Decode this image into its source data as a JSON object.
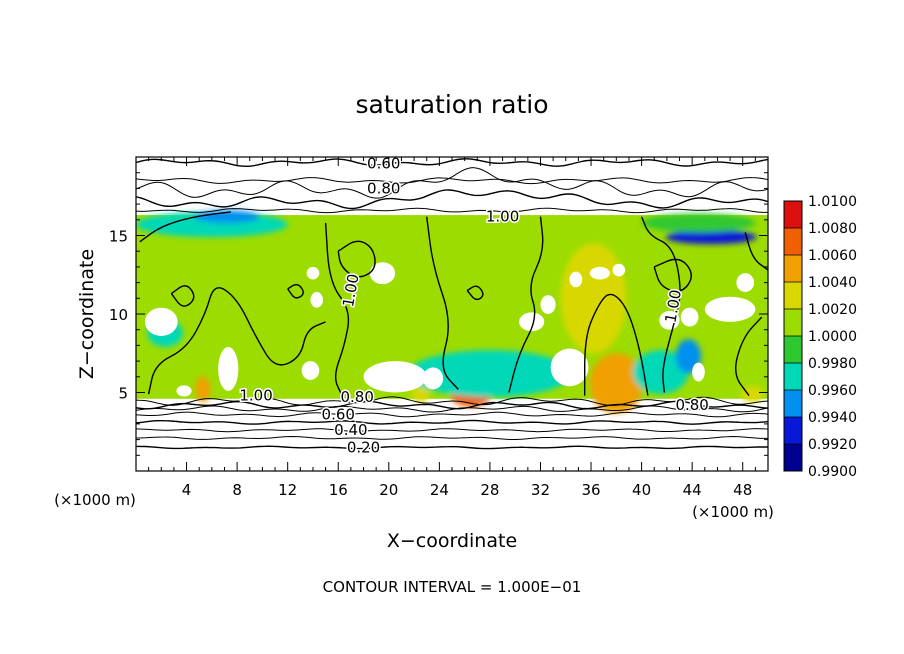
{
  "chart_data": {
    "type": "heatmap",
    "title": "saturation ratio",
    "xlabel": "X−coordinate",
    "ylabel": "Z−coordinate",
    "x_unit": "(×1000 m)",
    "xlim": [
      0,
      50
    ],
    "ylim": [
      0,
      20
    ],
    "x_ticks": [
      4,
      8,
      12,
      16,
      20,
      24,
      28,
      32,
      36,
      40,
      44,
      48
    ],
    "x_tick_labels": [
      "4",
      "8",
      "12",
      "16",
      "20",
      "24",
      "28",
      "32",
      "36",
      "40",
      "44",
      "48"
    ],
    "y_ticks": [
      5,
      10,
      15
    ],
    "y_tick_labels": [
      "5",
      "10",
      "15"
    ],
    "footer": "CONTOUR INTERVAL = 1.000E−01",
    "colorbar": {
      "levels": [
        "1.0100",
        "1.0080",
        "1.0060",
        "1.0040",
        "1.0020",
        "1.0000",
        "0.9980",
        "0.9960",
        "0.9940",
        "0.9920",
        "0.9900"
      ],
      "colors": [
        "#f08080",
        "#dd1010",
        "#f06000",
        "#f0a000",
        "#d8d800",
        "#9cdc00",
        "#30c830",
        "#00d8b8",
        "#0090f0",
        "#0818d8",
        "#000090",
        "#6a1fa8"
      ]
    },
    "contour_labels": [
      {
        "text": "0.60",
        "x": 19.6,
        "z": 19.6
      },
      {
        "text": "0.80",
        "x": 19.6,
        "z": 18.0
      },
      {
        "text": "1.00",
        "x": 29.0,
        "z": 16.2
      },
      {
        "text": "1.00",
        "x": 17.0,
        "z": 11.5
      },
      {
        "text": "1.00",
        "x": 42.5,
        "z": 10.5
      },
      {
        "text": "1.00",
        "x": 9.5,
        "z": 4.8
      },
      {
        "text": "0.80",
        "x": 17.5,
        "z": 4.7
      },
      {
        "text": "0.80",
        "x": 44.0,
        "z": 4.2
      },
      {
        "text": "0.60",
        "x": 16.0,
        "z": 3.6
      },
      {
        "text": "0.40",
        "x": 17.0,
        "z": 2.6
      },
      {
        "text": "0.20",
        "x": 18.0,
        "z": 1.5
      }
    ],
    "field_bounds": {
      "z_bottom": 4.6,
      "z_top": 16.3
    },
    "field_regions": [
      {
        "level": 1.0019,
        "x": 25,
        "z": 10.5,
        "rx": 25,
        "rz": 5.8
      },
      {
        "level": 1.0062,
        "x": 26.5,
        "z": 4.8,
        "rx": 1.6,
        "rz": 0.7
      },
      {
        "level": 1.008,
        "x": 38.0,
        "z": 5.0,
        "rx": 1.9,
        "rz": 1.3
      },
      {
        "level": 1.005,
        "x": 38.0,
        "z": 5.6,
        "rx": 2.1,
        "rz": 1.9
      },
      {
        "level": 1.0042,
        "x": 5.3,
        "z": 5.2,
        "rx": 0.6,
        "rz": 0.8
      },
      {
        "level": 1.0038,
        "x": 22.5,
        "z": 4.9,
        "rx": 0.7,
        "rz": 0.5
      },
      {
        "level": 1.0038,
        "x": 48.8,
        "z": 4.9,
        "rx": 0.9,
        "rz": 0.5
      },
      {
        "level": 1.0032,
        "x": 36.2,
        "z": 11.0,
        "rx": 2.6,
        "rz": 3.5
      },
      {
        "level": 0.9974,
        "x": 28.0,
        "z": 6.2,
        "rx": 6.5,
        "rz": 1.5
      },
      {
        "level": 0.9966,
        "x": 41.5,
        "z": 6.3,
        "rx": 2.2,
        "rz": 1.4
      },
      {
        "level": 0.9962,
        "x": 6.0,
        "z": 15.7,
        "rx": 6.0,
        "rz": 0.8
      },
      {
        "level": 0.9945,
        "x": 7.2,
        "z": 16.2,
        "rx": 2.6,
        "rz": 0.4
      },
      {
        "level": 0.993,
        "x": 45.5,
        "z": 14.9,
        "rx": 3.6,
        "rz": 0.45
      },
      {
        "level": 0.9985,
        "x": 44.5,
        "z": 15.8,
        "rx": 4.5,
        "rz": 0.6
      },
      {
        "level": 0.994,
        "x": 43.7,
        "z": 7.3,
        "rx": 1.0,
        "rz": 1.1
      },
      {
        "level": 0.997,
        "x": 2.3,
        "z": 8.8,
        "rx": 1.4,
        "rz": 0.9
      }
    ],
    "unsaturated_patches": [
      {
        "x": 2.0,
        "z": 9.5,
        "rx": 1.3,
        "rz": 0.9
      },
      {
        "x": 7.3,
        "z": 6.5,
        "rx": 0.8,
        "rz": 1.4
      },
      {
        "x": 13.8,
        "z": 6.4,
        "rx": 0.7,
        "rz": 0.6
      },
      {
        "x": 14.3,
        "z": 10.9,
        "rx": 0.5,
        "rz": 0.5
      },
      {
        "x": 14.0,
        "z": 12.6,
        "rx": 0.5,
        "rz": 0.4
      },
      {
        "x": 20.5,
        "z": 6.0,
        "rx": 2.5,
        "rz": 1.0
      },
      {
        "x": 19.5,
        "z": 12.6,
        "rx": 1.0,
        "rz": 0.7
      },
      {
        "x": 23.5,
        "z": 5.9,
        "rx": 0.8,
        "rz": 0.7
      },
      {
        "x": 31.3,
        "z": 9.5,
        "rx": 1.0,
        "rz": 0.6
      },
      {
        "x": 32.6,
        "z": 10.6,
        "rx": 0.6,
        "rz": 0.6
      },
      {
        "x": 34.3,
        "z": 6.6,
        "rx": 1.5,
        "rz": 1.2
      },
      {
        "x": 34.8,
        "z": 12.2,
        "rx": 0.5,
        "rz": 0.5
      },
      {
        "x": 36.7,
        "z": 12.6,
        "rx": 0.8,
        "rz": 0.4
      },
      {
        "x": 38.2,
        "z": 12.8,
        "rx": 0.5,
        "rz": 0.4
      },
      {
        "x": 42.2,
        "z": 9.6,
        "rx": 0.8,
        "rz": 0.6
      },
      {
        "x": 43.8,
        "z": 9.8,
        "rx": 0.7,
        "rz": 0.6
      },
      {
        "x": 44.5,
        "z": 6.3,
        "rx": 0.5,
        "rz": 0.6
      },
      {
        "x": 47.0,
        "z": 10.3,
        "rx": 2.0,
        "rz": 0.8
      },
      {
        "x": 48.2,
        "z": 12.0,
        "rx": 0.7,
        "rz": 0.6
      },
      {
        "x": 3.8,
        "z": 5.1,
        "rx": 0.6,
        "rz": 0.35
      }
    ],
    "contours_1_00": [
      [
        [
          0.3,
          14.6
        ],
        [
          2.0,
          15.6
        ],
        [
          4.5,
          16.2
        ],
        [
          7.5,
          16.5
        ]
      ],
      [
        [
          15.0,
          15.8
        ],
        [
          15.3,
          12.0
        ],
        [
          17.0,
          10.2
        ],
        [
          16.5,
          8.0
        ],
        [
          15.6,
          6.0
        ],
        [
          16.3,
          4.8
        ]
      ],
      [
        [
          23.0,
          16.2
        ],
        [
          23.5,
          13.0
        ],
        [
          25.0,
          9.5
        ],
        [
          24.0,
          6.5
        ],
        [
          25.5,
          5.2
        ]
      ],
      [
        [
          32.0,
          16.2
        ],
        [
          32.3,
          14.0
        ],
        [
          31.0,
          11.8
        ],
        [
          31.8,
          9.8
        ],
        [
          30.3,
          7.5
        ],
        [
          29.5,
          5.0
        ]
      ],
      [
        [
          1.0,
          4.9
        ],
        [
          1.5,
          6.8
        ],
        [
          4.0,
          7.8
        ],
        [
          5.5,
          10.0
        ],
        [
          6.2,
          12.0
        ],
        [
          8.0,
          11.0
        ],
        [
          9.5,
          8.5
        ],
        [
          11.0,
          6.5
        ],
        [
          13.0,
          7.2
        ],
        [
          13.5,
          9.0
        ],
        [
          15.0,
          9.5
        ]
      ],
      [
        [
          35.5,
          4.8
        ],
        [
          35.5,
          8.5
        ],
        [
          36.5,
          10.5
        ],
        [
          37.5,
          11.5
        ],
        [
          38.8,
          10.5
        ],
        [
          39.8,
          8.0
        ],
        [
          40.5,
          4.8
        ]
      ],
      [
        [
          40.0,
          16.2
        ],
        [
          40.6,
          15.0
        ],
        [
          42.5,
          14.3
        ],
        [
          43.2,
          11.5
        ],
        [
          42.6,
          9.5
        ],
        [
          41.6,
          6.5
        ],
        [
          41.8,
          5.0
        ]
      ],
      [
        [
          48.5,
          4.8
        ],
        [
          47.2,
          6.2
        ],
        [
          48.0,
          8.5
        ],
        [
          49.5,
          9.8
        ]
      ],
      [
        [
          48.2,
          15.2
        ],
        [
          48.8,
          13.5
        ],
        [
          50.0,
          12.8
        ]
      ]
    ],
    "contours_1_00_closed": [
      [
        [
          16.0,
          14.0
        ],
        [
          17.5,
          14.8
        ],
        [
          18.8,
          14.2
        ],
        [
          19.0,
          12.8
        ],
        [
          17.5,
          12.2
        ],
        [
          16.2,
          13.0
        ]
      ],
      [
        [
          41.0,
          13.0
        ],
        [
          43.0,
          13.7
        ],
        [
          44.2,
          12.5
        ],
        [
          43.2,
          11.3
        ],
        [
          41.5,
          11.7
        ]
      ],
      [
        [
          2.8,
          11.3
        ],
        [
          4.0,
          12.0
        ],
        [
          4.8,
          11.0
        ],
        [
          3.7,
          10.3
        ]
      ],
      [
        [
          26.2,
          11.5
        ],
        [
          27.0,
          11.9
        ],
        [
          27.6,
          11.2
        ],
        [
          26.9,
          10.8
        ]
      ],
      [
        [
          12.0,
          11.6
        ],
        [
          12.8,
          12.0
        ],
        [
          13.4,
          11.3
        ],
        [
          12.6,
          10.9
        ]
      ]
    ],
    "contours_below": [
      {
        "z": 19.65,
        "amp": 0.25
      },
      {
        "z": 18.5,
        "amp": 0.2
      },
      {
        "z": 17.9,
        "amp": 0.6,
        "bump": {
          "x": 28,
          "w": 6,
          "h": 1.2
        }
      },
      {
        "z": 17.1,
        "amp": 0.4,
        "bump": {
          "x": 28,
          "w": 7,
          "h": 0.8
        }
      },
      {
        "z": 16.6,
        "amp": 0.15
      },
      {
        "z": 4.45,
        "amp": 0.28
      },
      {
        "z": 4.2,
        "amp": 0.25
      },
      {
        "z": 3.95,
        "amp": 0.2
      },
      {
        "z": 3.6,
        "amp": 0.15
      },
      {
        "z": 3.1,
        "amp": 0.12
      },
      {
        "z": 2.6,
        "amp": 0.1
      },
      {
        "z": 2.1,
        "amp": 0.1
      },
      {
        "z": 1.5,
        "amp": 0.08
      }
    ]
  }
}
